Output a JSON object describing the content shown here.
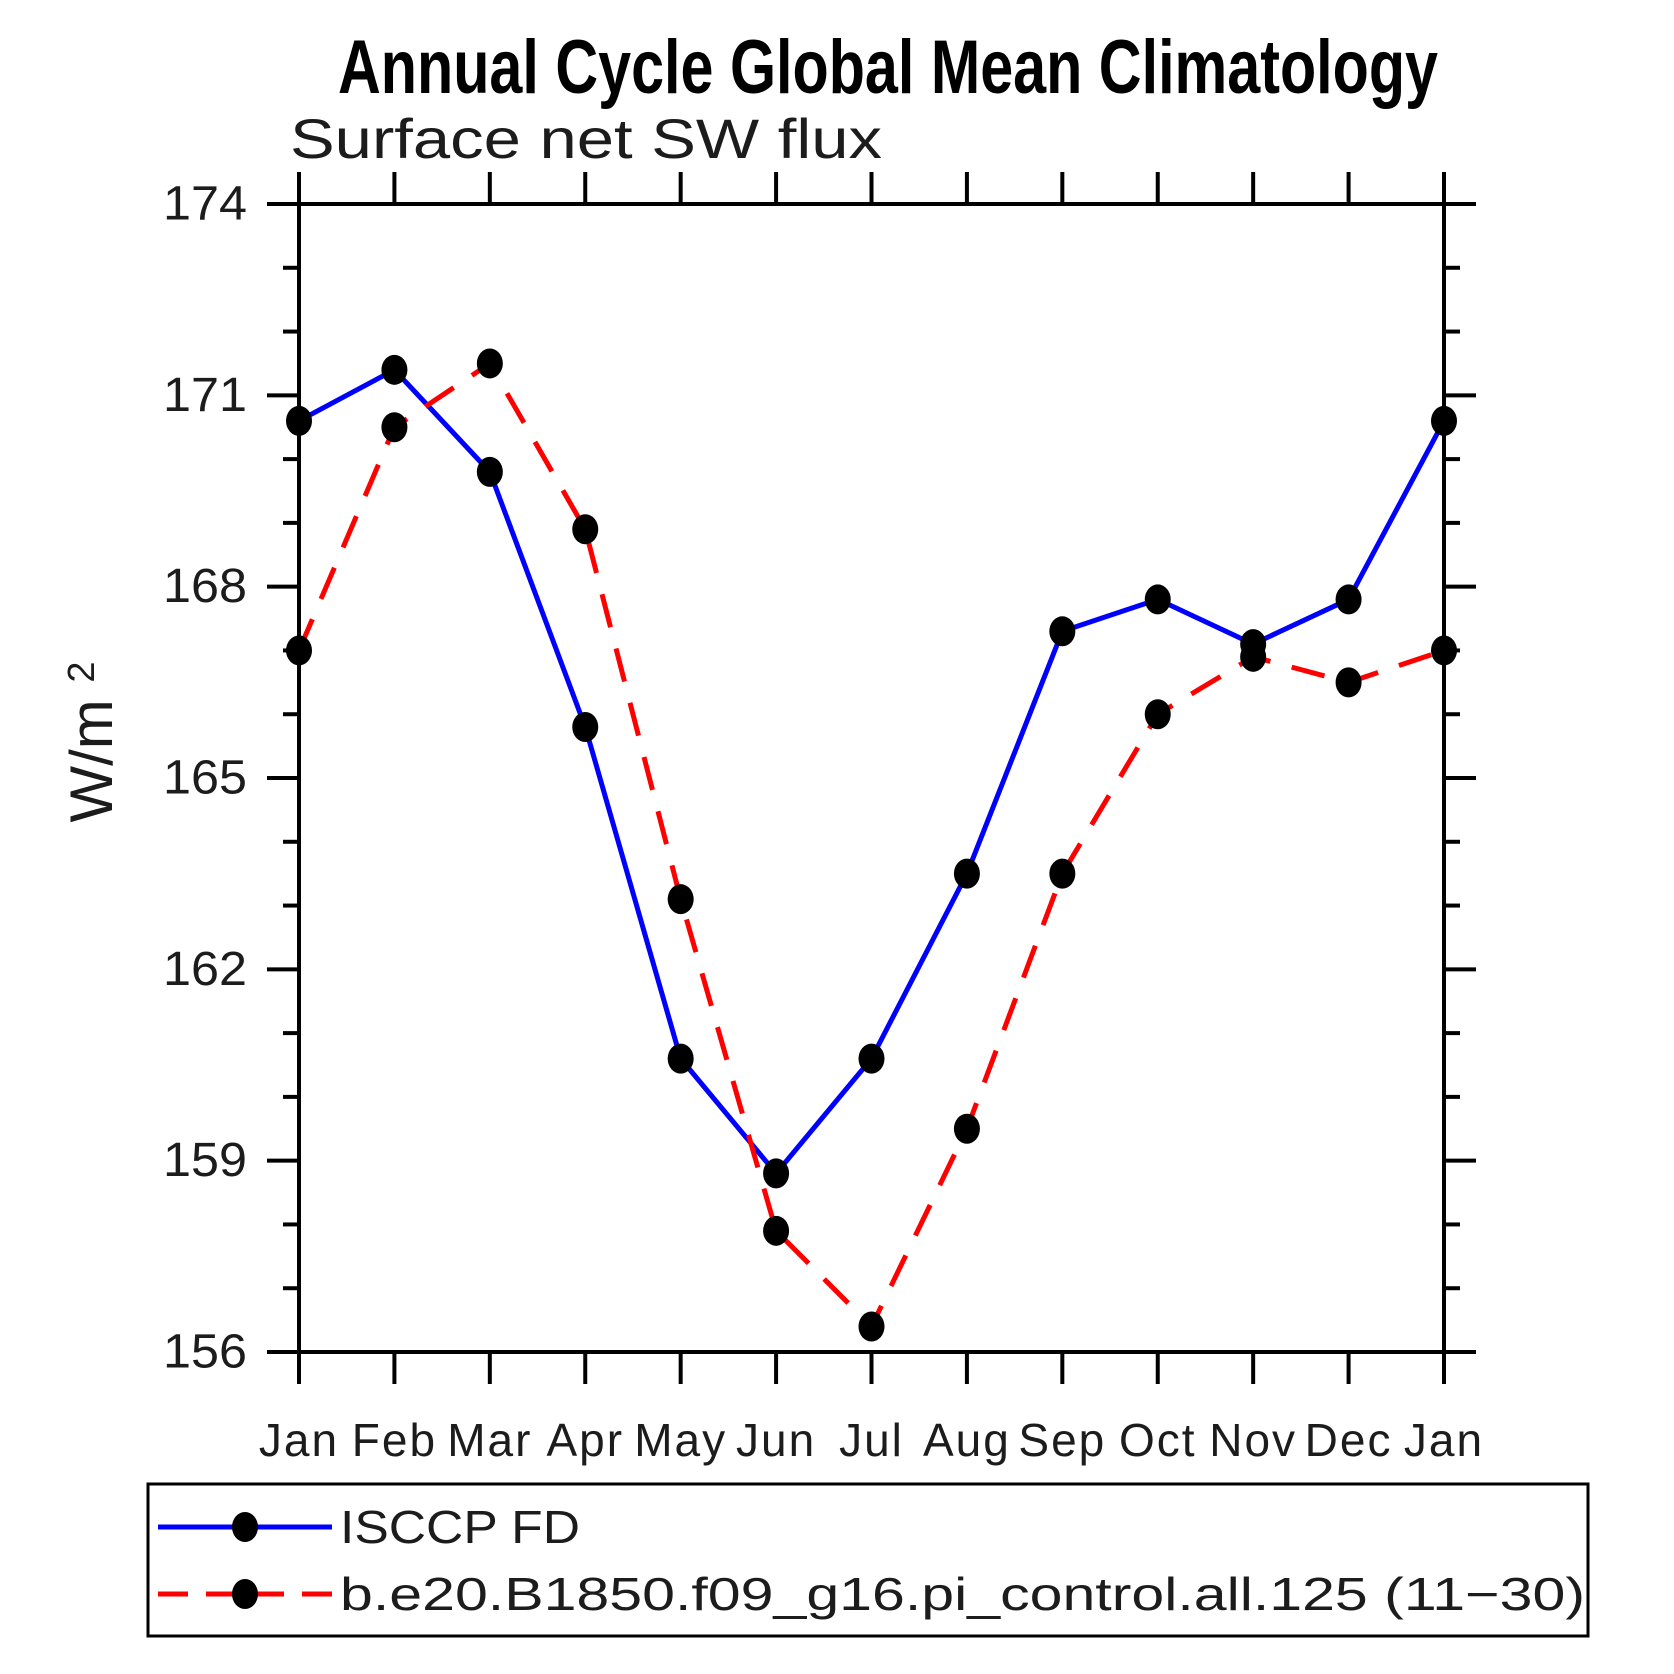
{
  "title": "Annual Cycle Global Mean Climatology",
  "subtitle": "Surface net SW flux",
  "y_axis": {
    "label_base": "W/m",
    "label_sup": "2"
  },
  "chart_data": {
    "type": "line",
    "title": "Annual Cycle Global Mean Climatology",
    "subtitle": "Surface net SW flux",
    "ylabel": "W/m^2",
    "xlabel": "",
    "categories": [
      "Jan",
      "Feb",
      "Mar",
      "Apr",
      "May",
      "Jun",
      "Jul",
      "Aug",
      "Sep",
      "Oct",
      "Nov",
      "Dec",
      "Jan"
    ],
    "ylim": [
      156,
      174
    ],
    "yticks_major": [
      174,
      171,
      168,
      165,
      162,
      159,
      156
    ],
    "ytick_minor_step": 1,
    "grid": false,
    "legend_position": "bottom-left-box",
    "series": [
      {
        "name": "ISCCP FD",
        "color": "#0000ff",
        "line_style": "solid",
        "marker": "filled-circle",
        "marker_color": "#000000",
        "values": [
          170.6,
          171.4,
          169.8,
          165.8,
          160.6,
          158.8,
          160.6,
          163.5,
          167.3,
          167.8,
          167.1,
          167.8,
          170.6
        ]
      },
      {
        "name": "b.e20.B1850.f09_g16.pi_control.all.125 (11−30)",
        "color": "#ff0000",
        "line_style": "dashed",
        "marker": "filled-circle",
        "marker_color": "#000000",
        "values": [
          167.0,
          170.5,
          171.5,
          168.9,
          163.1,
          157.9,
          156.4,
          159.5,
          163.5,
          166.0,
          166.9,
          166.5,
          167.0
        ]
      }
    ]
  },
  "colors": {
    "background": "#ffffff",
    "axis": "#000000",
    "text": "#1c1c1c",
    "series_1": "#0000ff",
    "series_2": "#ff0000",
    "marker": "#000000"
  }
}
